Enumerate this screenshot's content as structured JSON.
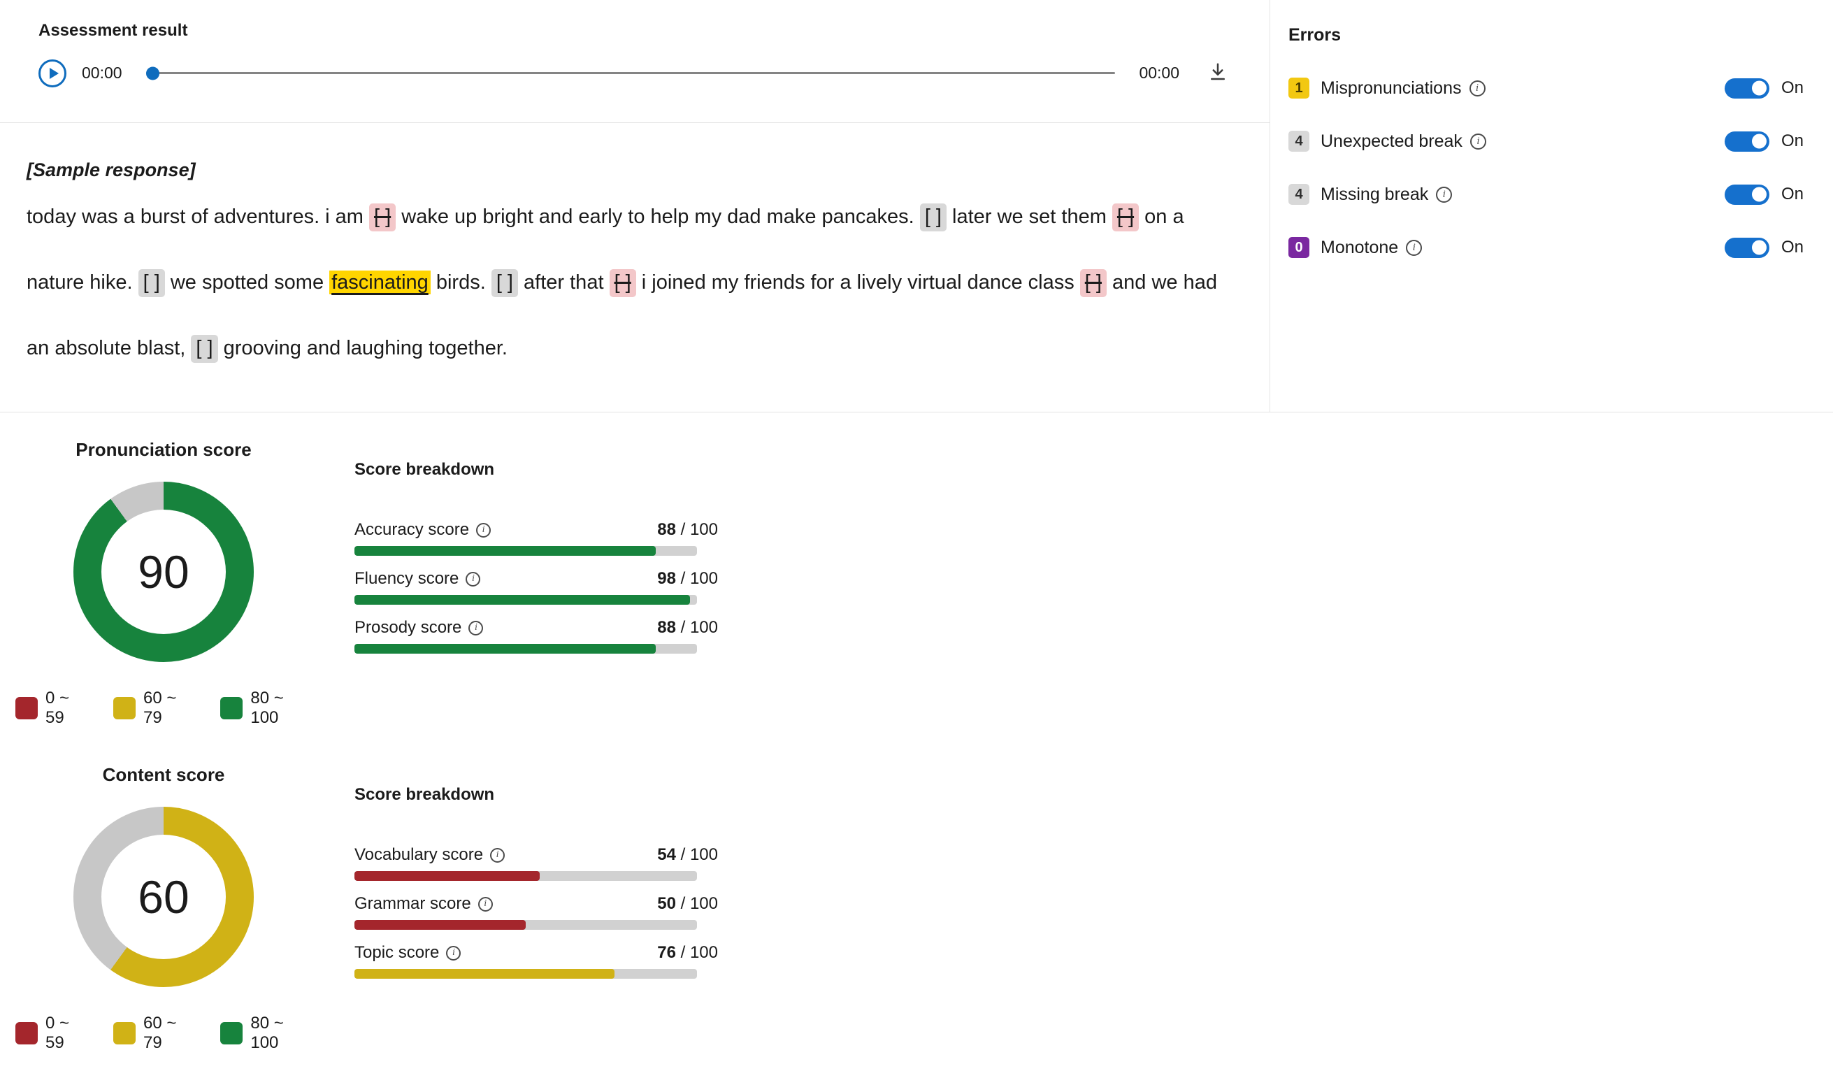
{
  "player": {
    "title": "Assessment result",
    "current_time": "00:00",
    "total_time": "00:00"
  },
  "errors_panel": {
    "title": "Errors",
    "on_label": "On",
    "items": [
      {
        "count": "1",
        "label": "Mispronunciations",
        "badge_bg": "#F2C811",
        "badge_fg": "#473B00",
        "enabled": true
      },
      {
        "count": "4",
        "label": "Unexpected break",
        "badge_bg": "#D8D8D8",
        "badge_fg": "#303030",
        "enabled": true
      },
      {
        "count": "4",
        "label": "Missing break",
        "badge_bg": "#D8D8D8",
        "badge_fg": "#303030",
        "enabled": true
      },
      {
        "count": "0",
        "label": "Monotone",
        "badge_bg": "#7A28A0",
        "badge_fg": "#FFFFFF",
        "enabled": true
      }
    ]
  },
  "transcript": {
    "heading": "[Sample response]",
    "markers": {
      "unexpected_break": "[ ]",
      "missing_break": "[ ]"
    },
    "segments": [
      {
        "type": "text",
        "text": "today was a burst of adventures. i am "
      },
      {
        "type": "unexpected_break"
      },
      {
        "type": "text",
        "text": " wake up bright and early to help my dad make pancakes. "
      },
      {
        "type": "missing_break"
      },
      {
        "type": "text",
        "text": " later we set them "
      },
      {
        "type": "unexpected_break"
      },
      {
        "type": "text",
        "text": " on a nature hike. "
      },
      {
        "type": "missing_break"
      },
      {
        "type": "text",
        "text": " we spotted some "
      },
      {
        "type": "mispronunciation",
        "text": "fascinating"
      },
      {
        "type": "text",
        "text": " birds. "
      },
      {
        "type": "missing_break"
      },
      {
        "type": "text",
        "text": " after that "
      },
      {
        "type": "unexpected_break"
      },
      {
        "type": "text",
        "text": " i joined my friends for a lively virtual dance class "
      },
      {
        "type": "unexpected_break"
      },
      {
        "type": "text",
        "text": " and we had an absolute blast, "
      },
      {
        "type": "missing_break"
      },
      {
        "type": "text",
        "text": " grooving and laughing together."
      }
    ]
  },
  "legend": [
    {
      "label": "0 ~ 59",
      "color": "#A4262C"
    },
    {
      "label": "60 ~ 79",
      "color": "#D0B216"
    },
    {
      "label": "80 ~ 100",
      "color": "#17833D"
    }
  ],
  "scores": [
    {
      "title": "Pronunciation score",
      "value": 90,
      "color": "#17833D",
      "breakdown_title": "Score breakdown",
      "bars": [
        {
          "label": "Accuracy score",
          "value": 88,
          "max": 100,
          "color": "#17833D"
        },
        {
          "label": "Fluency score",
          "value": 98,
          "max": 100,
          "color": "#17833D"
        },
        {
          "label": "Prosody score",
          "value": 88,
          "max": 100,
          "color": "#17833D"
        }
      ]
    },
    {
      "title": "Content score",
      "value": 60,
      "color": "#D0B216",
      "breakdown_title": "Score breakdown",
      "bars": [
        {
          "label": "Vocabulary score",
          "value": 54,
          "max": 100,
          "color": "#A4262C"
        },
        {
          "label": "Grammar score",
          "value": 50,
          "max": 100,
          "color": "#A4262C"
        },
        {
          "label": "Topic score",
          "value": 76,
          "max": 100,
          "color": "#D0B216"
        }
      ]
    }
  ],
  "colors": {
    "toggle_on": "#1570CD",
    "accent_blue": "#0F6CBD",
    "donut_track": "#C7C7C7",
    "bar_track": "#D1D1D1",
    "mispronounce_highlight": "#FFD500",
    "unexpected_chip_bg": "#F3C7C9",
    "missing_chip_bg": "#D8D8D8"
  }
}
